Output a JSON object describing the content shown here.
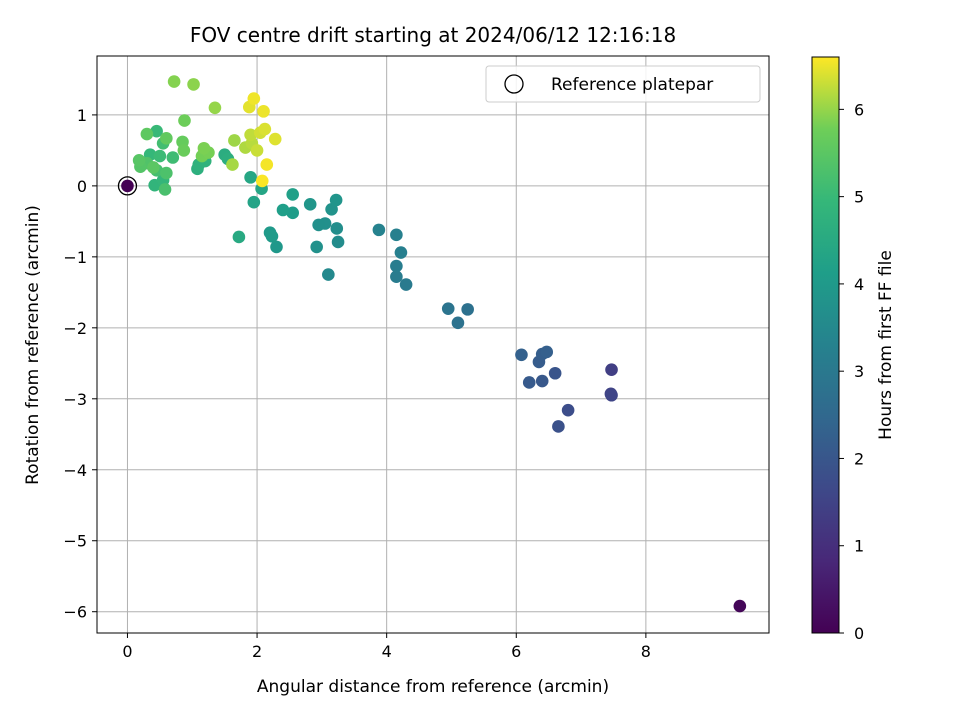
{
  "chart_data": {
    "type": "scatter",
    "title": "FOV centre drift starting at 2024/06/12 12:16:18",
    "xlabel": "Angular distance from reference (arcmin)",
    "ylabel": "Rotation from reference (arcmin)",
    "xlim": [
      -0.47,
      9.9
    ],
    "ylim": [
      -6.3,
      1.83
    ],
    "xticks": [
      0,
      2,
      4,
      6,
      8
    ],
    "yticks": [
      1,
      0,
      -1,
      -2,
      -3,
      -4,
      -5,
      -6
    ],
    "grid": true,
    "legend": {
      "position": "top-right",
      "entries": [
        "Reference platepar"
      ]
    },
    "reference_point": {
      "x": 0,
      "y": 0
    },
    "colorbar": {
      "label": "Hours from first FF file",
      "min": 0,
      "max": 6.6,
      "ticks": [
        0,
        1,
        2,
        3,
        4,
        5,
        6
      ],
      "colormap": "viridis"
    },
    "points": [
      {
        "x": 0,
        "y": 0,
        "c": 0
      },
      {
        "x": 9.45,
        "y": -5.92,
        "c": 0.1
      },
      {
        "x": 7.47,
        "y": -2.59,
        "c": 1.4
      },
      {
        "x": 7.46,
        "y": -2.93,
        "c": 1.5
      },
      {
        "x": 7.47,
        "y": -2.95,
        "c": 1.55
      },
      {
        "x": 6.8,
        "y": -3.16,
        "c": 1.75
      },
      {
        "x": 6.65,
        "y": -3.39,
        "c": 1.85
      },
      {
        "x": 6.6,
        "y": -2.64,
        "c": 1.95
      },
      {
        "x": 6.4,
        "y": -2.75,
        "c": 2.05
      },
      {
        "x": 6.2,
        "y": -2.77,
        "c": 2.1
      },
      {
        "x": 6.35,
        "y": -2.48,
        "c": 2.15
      },
      {
        "x": 6.4,
        "y": -2.37,
        "c": 2.2
      },
      {
        "x": 6.47,
        "y": -2.34,
        "c": 2.25
      },
      {
        "x": 6.08,
        "y": -2.38,
        "c": 2.3
      },
      {
        "x": 5.25,
        "y": -1.74,
        "c": 2.75
      },
      {
        "x": 5.1,
        "y": -1.93,
        "c": 2.8
      },
      {
        "x": 4.95,
        "y": -1.73,
        "c": 2.85
      },
      {
        "x": 4.3,
        "y": -1.39,
        "c": 3.05
      },
      {
        "x": 4.15,
        "y": -1.28,
        "c": 3.1
      },
      {
        "x": 4.15,
        "y": -1.13,
        "c": 3.15
      },
      {
        "x": 4.22,
        "y": -0.94,
        "c": 3.2
      },
      {
        "x": 4.15,
        "y": -0.69,
        "c": 3.25
      },
      {
        "x": 3.88,
        "y": -0.62,
        "c": 3.3
      },
      {
        "x": 3.1,
        "y": -1.25,
        "c": 3.5
      },
      {
        "x": 3.25,
        "y": -0.79,
        "c": 3.6
      },
      {
        "x": 3.23,
        "y": -0.6,
        "c": 3.65
      },
      {
        "x": 3.05,
        "y": -0.53,
        "c": 3.7
      },
      {
        "x": 2.95,
        "y": -0.55,
        "c": 3.72
      },
      {
        "x": 2.92,
        "y": -0.86,
        "c": 3.75
      },
      {
        "x": 3.15,
        "y": -0.33,
        "c": 3.8
      },
      {
        "x": 3.22,
        "y": -0.2,
        "c": 3.85
      },
      {
        "x": 2.82,
        "y": -0.26,
        "c": 3.9
      },
      {
        "x": 2.3,
        "y": -0.86,
        "c": 3.95
      },
      {
        "x": 2.2,
        "y": -0.66,
        "c": 4.0
      },
      {
        "x": 2.23,
        "y": -0.71,
        "c": 4.05
      },
      {
        "x": 2.55,
        "y": -0.38,
        "c": 4.1
      },
      {
        "x": 2.4,
        "y": -0.34,
        "c": 4.15
      },
      {
        "x": 2.55,
        "y": -0.12,
        "c": 4.2
      },
      {
        "x": 1.95,
        "y": -0.23,
        "c": 4.3
      },
      {
        "x": 2.07,
        "y": -0.04,
        "c": 4.35
      },
      {
        "x": 1.9,
        "y": 0.12,
        "c": 4.4
      },
      {
        "x": 1.72,
        "y": -0.72,
        "c": 4.5
      },
      {
        "x": 1.5,
        "y": 0.44,
        "c": 4.6
      },
      {
        "x": 1.55,
        "y": 0.38,
        "c": 4.65
      },
      {
        "x": 1.08,
        "y": 0.24,
        "c": 4.7
      },
      {
        "x": 1.1,
        "y": 0.3,
        "c": 4.75
      },
      {
        "x": 1.2,
        "y": 0.35,
        "c": 4.8
      },
      {
        "x": 0.42,
        "y": 0.01,
        "c": 4.85
      },
      {
        "x": 0.55,
        "y": 0.08,
        "c": 4.9
      },
      {
        "x": 0.35,
        "y": 0.44,
        "c": 4.95
      },
      {
        "x": 0.45,
        "y": 0.77,
        "c": 5.0
      },
      {
        "x": 0.5,
        "y": 0.42,
        "c": 5.05
      },
      {
        "x": 0.7,
        "y": 0.4,
        "c": 5.1
      },
      {
        "x": 0.55,
        "y": 0.6,
        "c": 5.15
      },
      {
        "x": 0.45,
        "y": 0.22,
        "c": 5.2
      },
      {
        "x": 0.58,
        "y": -0.05,
        "c": 5.25
      },
      {
        "x": 0.6,
        "y": 0.18,
        "c": 5.3
      },
      {
        "x": 0.3,
        "y": 0.32,
        "c": 5.35
      },
      {
        "x": 0.2,
        "y": 0.27,
        "c": 5.4
      },
      {
        "x": 0.18,
        "y": 0.36,
        "c": 5.45
      },
      {
        "x": 0.4,
        "y": 0.26,
        "c": 5.5
      },
      {
        "x": 0.3,
        "y": 0.73,
        "c": 5.55
      },
      {
        "x": 0.6,
        "y": 0.67,
        "c": 5.6
      },
      {
        "x": 0.85,
        "y": 0.62,
        "c": 5.65
      },
      {
        "x": 0.87,
        "y": 0.5,
        "c": 5.7
      },
      {
        "x": 0.88,
        "y": 0.92,
        "c": 5.75
      },
      {
        "x": 1.15,
        "y": 0.42,
        "c": 5.8
      },
      {
        "x": 1.25,
        "y": 0.47,
        "c": 5.82
      },
      {
        "x": 1.18,
        "y": 0.53,
        "c": 5.85
      },
      {
        "x": 0.72,
        "y": 1.47,
        "c": 5.9
      },
      {
        "x": 1.02,
        "y": 1.43,
        "c": 5.95
      },
      {
        "x": 1.35,
        "y": 1.1,
        "c": 6.0
      },
      {
        "x": 1.65,
        "y": 0.64,
        "c": 6.05
      },
      {
        "x": 1.62,
        "y": 0.3,
        "c": 6.1
      },
      {
        "x": 1.82,
        "y": 0.54,
        "c": 6.15
      },
      {
        "x": 1.92,
        "y": 0.6,
        "c": 6.2
      },
      {
        "x": 1.9,
        "y": 0.72,
        "c": 6.25
      },
      {
        "x": 2.0,
        "y": 0.5,
        "c": 6.3
      },
      {
        "x": 2.05,
        "y": 0.75,
        "c": 6.35
      },
      {
        "x": 2.12,
        "y": 0.8,
        "c": 6.4
      },
      {
        "x": 2.28,
        "y": 0.66,
        "c": 6.42
      },
      {
        "x": 1.88,
        "y": 1.11,
        "c": 6.45
      },
      {
        "x": 2.1,
        "y": 1.05,
        "c": 6.5
      },
      {
        "x": 1.95,
        "y": 1.23,
        "c": 6.52
      },
      {
        "x": 2.15,
        "y": 0.3,
        "c": 6.55
      },
      {
        "x": 2.08,
        "y": 0.07,
        "c": 6.58
      }
    ]
  }
}
